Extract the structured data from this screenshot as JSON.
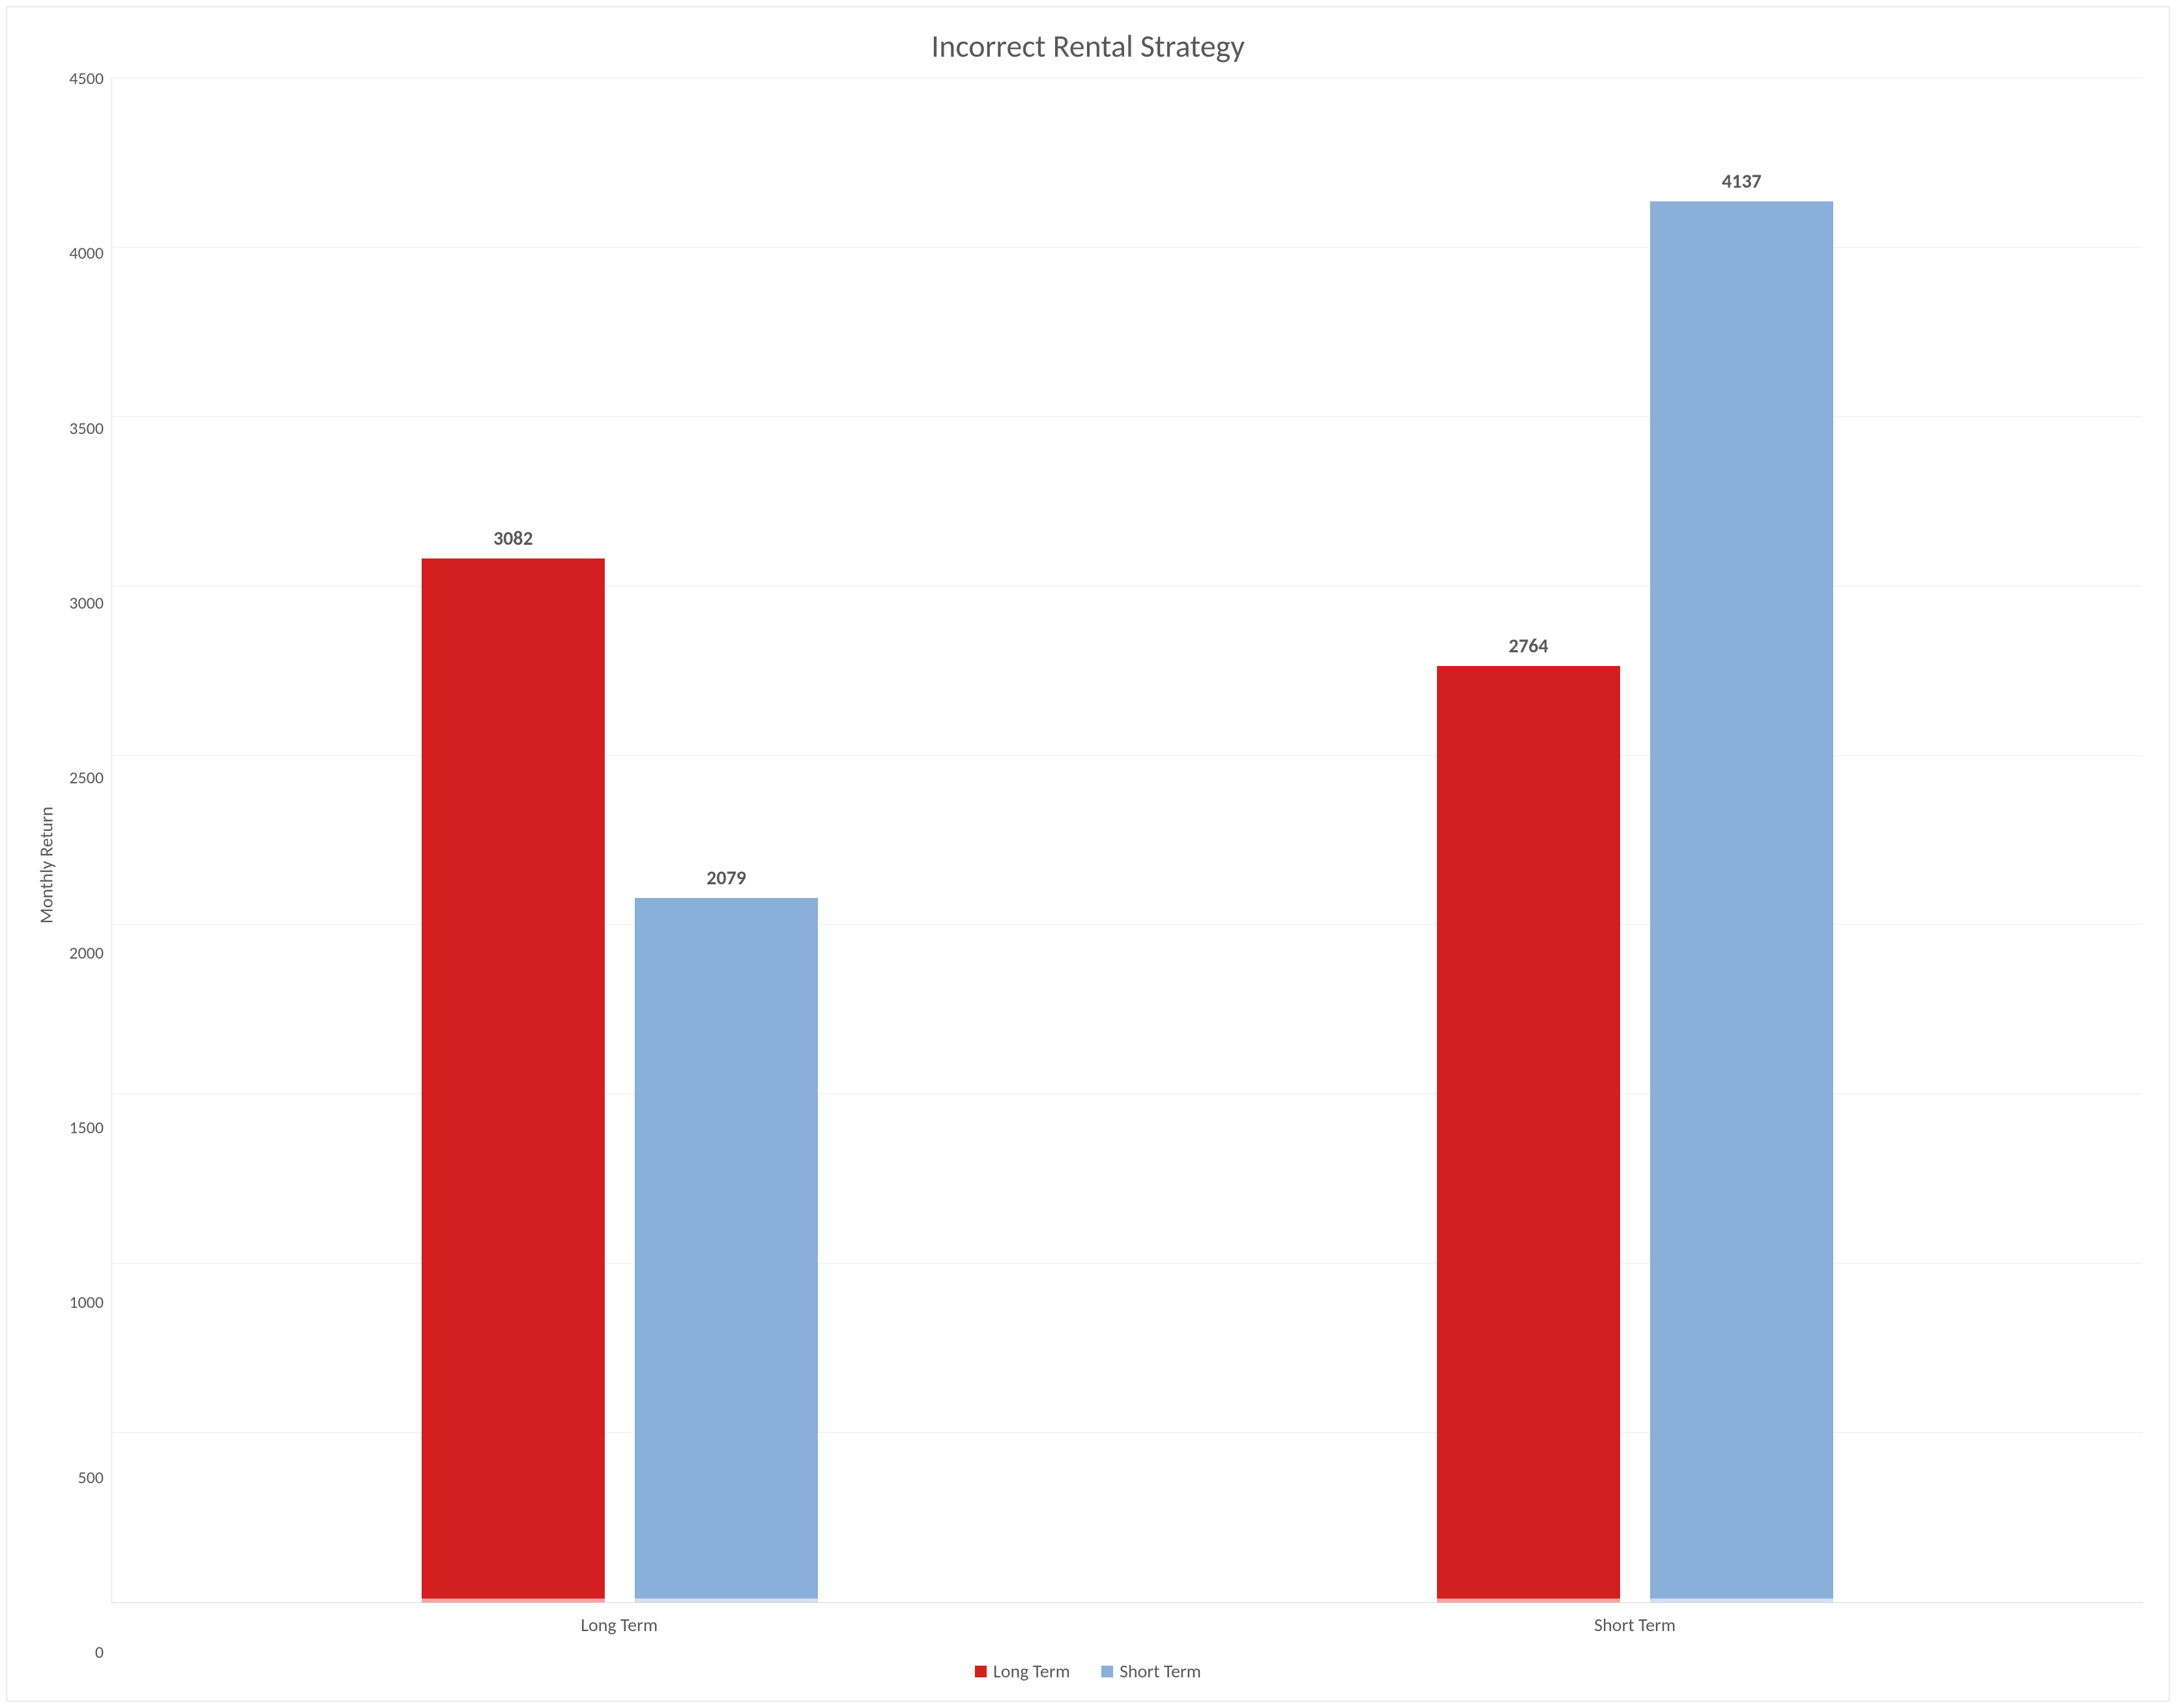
{
  "chart": {
    "type": "bar",
    "title": "Incorrect Rental Strategy",
    "title_fontsize": 48,
    "title_color": "#595959",
    "ylabel": "Monthly Return",
    "ylabel_fontsize": 28,
    "axis_label_color": "#595959",
    "tick_fontsize": 26,
    "tick_color": "#595959",
    "data_label_fontsize": 30,
    "data_label_weight": 700,
    "data_label_color": "#595959",
    "background_color": "#ffffff",
    "frame_border_color": "#d9d9d9",
    "axis_line_color": "#d9d9d9",
    "grid_color": "#ececec",
    "ylim": [
      0,
      4500
    ],
    "ytick_step": 500,
    "yticks": [
      0,
      500,
      1000,
      1500,
      2000,
      2500,
      3000,
      3500,
      4000,
      4500
    ],
    "categories": [
      "Long Term",
      "Short Term"
    ],
    "series": [
      {
        "name": "Long Term",
        "color": "#d31f1f",
        "underline_color": "#f2a3a3",
        "values": [
          3082,
          2764
        ]
      },
      {
        "name": "Short Term",
        "color": "#8aafd8",
        "underline_color": "#d2e0ef",
        "values": [
          2079,
          4137
        ]
      }
    ],
    "bar_width_pct": 18,
    "bar_gap_pct": 3,
    "legend_swatch_size": 18,
    "legend_fontsize": 28
  }
}
